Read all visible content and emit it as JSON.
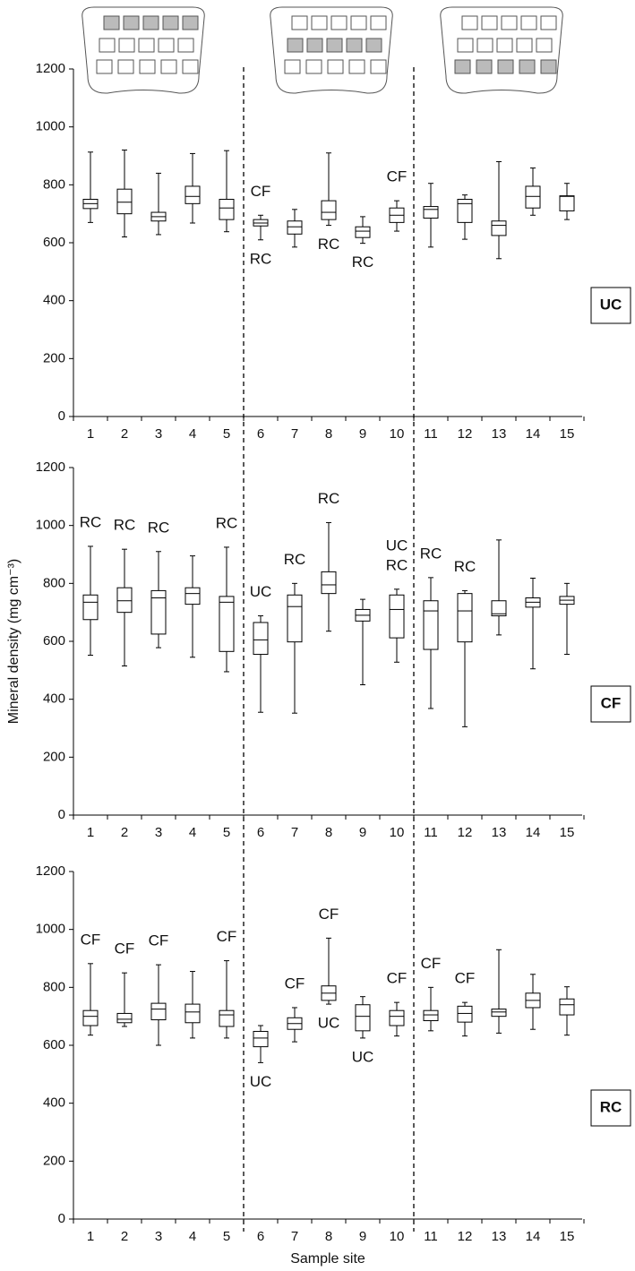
{
  "chart_data": [
    {
      "type": "box",
      "label": "UC",
      "categories": [
        "1",
        "2",
        "3",
        "4",
        "5",
        "6",
        "7",
        "8",
        "9",
        "10",
        "11",
        "12",
        "13",
        "14",
        "15"
      ],
      "min": [
        670,
        620,
        628,
        668,
        638,
        610,
        585,
        660,
        598,
        640,
        585,
        612,
        545,
        695,
        680
      ],
      "q1": [
        718,
        700,
        675,
        735,
        680,
        658,
        630,
        680,
        618,
        670,
        685,
        670,
        625,
        720,
        710
      ],
      "median": [
        735,
        740,
        690,
        760,
        720,
        668,
        655,
        705,
        640,
        695,
        715,
        735,
        660,
        760,
        760
      ],
      "q3": [
        750,
        785,
        705,
        795,
        750,
        680,
        675,
        745,
        655,
        720,
        725,
        750,
        675,
        795,
        762
      ],
      "max": [
        913,
        920,
        840,
        908,
        918,
        695,
        715,
        910,
        690,
        745,
        805,
        765,
        880,
        858,
        805
      ],
      "annotations_above": [
        null,
        null,
        null,
        null,
        null,
        [
          "CF"
        ],
        null,
        null,
        null,
        [
          "CF"
        ],
        null,
        null,
        null,
        null,
        null
      ],
      "annotations_below": [
        null,
        null,
        null,
        null,
        null,
        [
          "RC"
        ],
        null,
        [
          "RC"
        ],
        [
          "RC"
        ],
        null,
        null,
        null,
        null,
        null,
        null
      ],
      "ylim": [
        0,
        1200
      ],
      "yticks": [
        0,
        200,
        400,
        600,
        800,
        1000,
        1200
      ]
    },
    {
      "type": "box",
      "label": "CF",
      "ylabel": "Mineral density (mg cm⁻³)",
      "categories": [
        "1",
        "2",
        "3",
        "4",
        "5",
        "6",
        "7",
        "8",
        "9",
        "10",
        "11",
        "12",
        "13",
        "14",
        "15"
      ],
      "min": [
        552,
        515,
        578,
        545,
        495,
        355,
        352,
        635,
        450,
        528,
        368,
        305,
        622,
        505,
        555
      ],
      "q1": [
        675,
        700,
        625,
        728,
        565,
        555,
        598,
        765,
        670,
        612,
        572,
        598,
        688,
        718,
        728
      ],
      "median": [
        735,
        740,
        750,
        765,
        735,
        605,
        720,
        795,
        690,
        710,
        705,
        705,
        695,
        735,
        742
      ],
      "q3": [
        760,
        785,
        775,
        785,
        755,
        665,
        760,
        840,
        710,
        760,
        740,
        765,
        740,
        750,
        755
      ],
      "max": [
        928,
        918,
        910,
        895,
        925,
        688,
        800,
        1010,
        745,
        780,
        820,
        775,
        950,
        818,
        800
      ],
      "annotations_above": [
        [
          "RC"
        ],
        [
          "RC"
        ],
        [
          "RC"
        ],
        null,
        [
          "RC"
        ],
        [
          "UC"
        ],
        [
          "RC"
        ],
        [
          "RC"
        ],
        null,
        [
          "UC",
          "RC"
        ],
        [
          "RC"
        ],
        [
          "RC"
        ],
        null,
        null,
        null
      ],
      "annotations_below": [
        null,
        null,
        null,
        null,
        null,
        null,
        null,
        null,
        null,
        null,
        null,
        null,
        null,
        null,
        null
      ],
      "ylim": [
        0,
        1200
      ],
      "yticks": [
        0,
        200,
        400,
        600,
        800,
        1000,
        1200
      ]
    },
    {
      "type": "box",
      "label": "RC",
      "xlabel": "Sample site",
      "categories": [
        "1",
        "2",
        "3",
        "4",
        "5",
        "6",
        "7",
        "8",
        "9",
        "10",
        "11",
        "12",
        "13",
        "14",
        "15"
      ],
      "min": [
        635,
        665,
        600,
        625,
        625,
        540,
        612,
        742,
        625,
        632,
        650,
        632,
        642,
        655,
        635
      ],
      "q1": [
        668,
        678,
        688,
        678,
        665,
        595,
        655,
        755,
        650,
        668,
        685,
        680,
        700,
        730,
        705
      ],
      "median": [
        700,
        690,
        725,
        715,
        705,
        625,
        675,
        780,
        700,
        700,
        705,
        710,
        715,
        755,
        740
      ],
      "q3": [
        720,
        710,
        745,
        742,
        720,
        648,
        695,
        805,
        740,
        720,
        720,
        735,
        725,
        780,
        760
      ],
      "max": [
        882,
        850,
        878,
        855,
        892,
        668,
        730,
        970,
        768,
        748,
        800,
        748,
        930,
        845,
        802
      ],
      "annotations_above": [
        [
          "CF"
        ],
        [
          "CF"
        ],
        [
          "CF"
        ],
        null,
        [
          "CF"
        ],
        null,
        [
          "CF"
        ],
        [
          "CF"
        ],
        null,
        [
          "CF"
        ],
        [
          "CF"
        ],
        [
          "CF"
        ],
        null,
        null,
        null
      ],
      "annotations_below": [
        null,
        null,
        null,
        null,
        null,
        [
          "UC"
        ],
        null,
        [
          "UC"
        ],
        [
          "UC"
        ],
        null,
        null,
        null,
        null,
        null,
        null
      ],
      "ylim": [
        0,
        1200
      ],
      "yticks": [
        0,
        200,
        400,
        600,
        800,
        1000,
        1200
      ]
    }
  ]
}
